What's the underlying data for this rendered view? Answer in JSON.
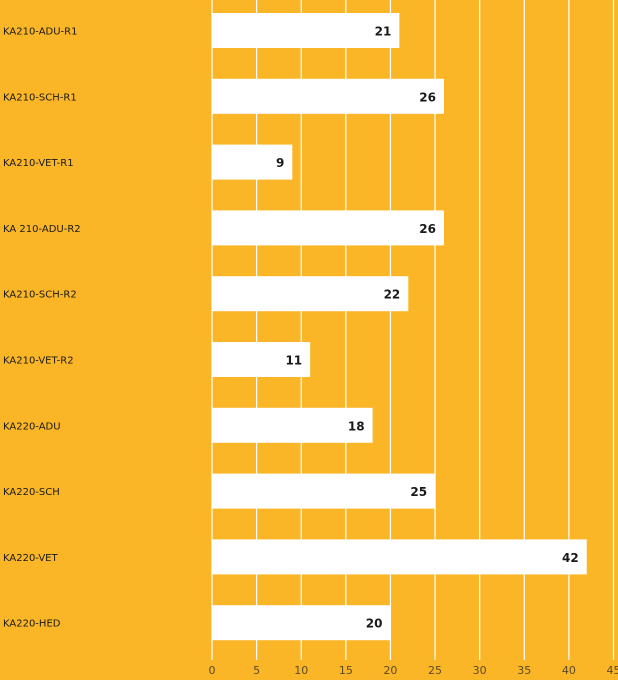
{
  "chart_data": {
    "type": "bar",
    "orientation": "horizontal",
    "title": "",
    "xlabel": "",
    "ylabel": "",
    "categories": [
      "KA210-ADU-R1",
      "KA210-SCH-R1",
      "KA210-VET-R1",
      "KA 210-ADU-R2",
      "KA210-SCH-R2",
      "KA210-VET-R2",
      "KA220-ADU",
      "KA220-SCH",
      "KA220-VET",
      "KA220-HED"
    ],
    "values": [
      21,
      26,
      9,
      26,
      22,
      11,
      18,
      25,
      42,
      20
    ],
    "xlim": [
      0,
      45
    ],
    "xticks": [
      "0",
      "5",
      "10",
      "15",
      "20",
      "25",
      "30",
      "35",
      "40",
      "45"
    ],
    "grid": true,
    "colors": {
      "background": "#FBB627",
      "bar": "#FFFFFF",
      "text": "#1a1a1a",
      "grid": "#FFFFFF"
    }
  }
}
